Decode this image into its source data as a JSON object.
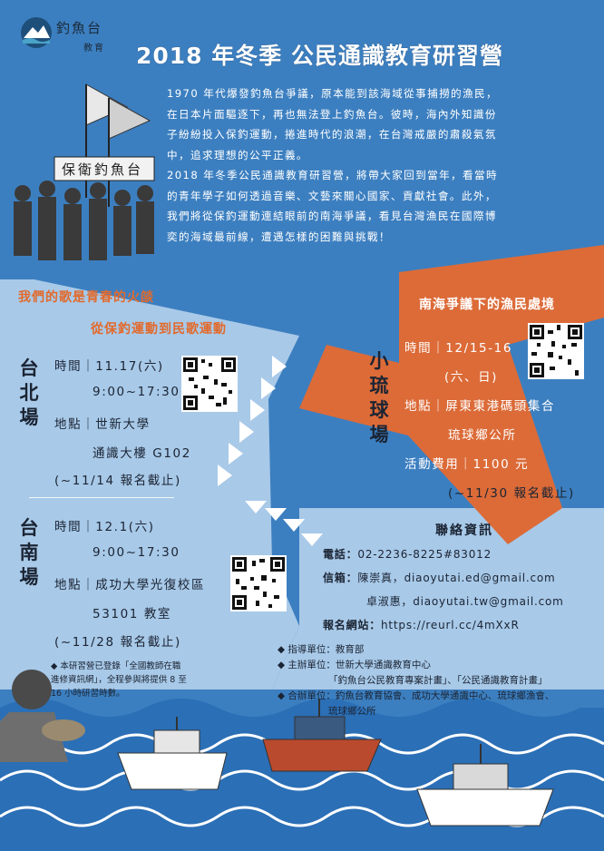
{
  "logo": {
    "name": "釣魚台",
    "sub": "教育"
  },
  "title": "2018 年冬季  公民通識教育研習營",
  "intro": {
    "p1_lines": [
      "1970 年代爆發釣魚台爭議，原本能到該海域從事捕撈的漁民，",
      "在日本片面驅逐下，再也無法登上釣魚台。彼時，海內外知識份",
      "子紛紛投入保釣運動，捲進時代的浪潮，在台灣戒嚴的肅殺氣氛",
      "中，追求理想的公平正義。"
    ],
    "p2_lines": [
      "2018 年冬季公民通識教育研習營，將帶大家回到當年，看當時",
      "的青年學子如何透過音樂、文藝來關心國家、貢獻社會。此外，",
      "我們將從保釣運動連結眼前的南海爭議，看見台灣漁民在國際博",
      "奕的海域最前線，遭遇怎樣的困難與挑戰！"
    ]
  },
  "photo": {
    "banner_text": "保衛釣魚台"
  },
  "left_theme": {
    "line1": "我們的歌是青春的火燄",
    "line2": "從保釣運動到民歌運動"
  },
  "taipei": {
    "venue": [
      "台",
      "北",
      "場"
    ],
    "time_label": "時間｜11.17(六)",
    "time_hours": "9:00~17:30",
    "place_label": "地點｜世新大學",
    "place_detail": "通識大樓 G102",
    "deadline": "(~11/14 報名截止)"
  },
  "tainan": {
    "venue": [
      "台",
      "南",
      "場"
    ],
    "time_label": "時間｜12.1(六)",
    "time_hours": "9:00~17:30",
    "place_label": "地點｜成功大學光復校區",
    "place_detail": "53101 教室",
    "deadline": "(~11/28 報名截止)"
  },
  "right_theme": "南海爭議下的漁民處境",
  "liuqiu": {
    "venue": [
      "小",
      "琉",
      "球",
      "場"
    ],
    "time_label": "時間｜12/15-16",
    "time_days": "(六、日)",
    "place_label": "地點｜屏東東港碼頭集合",
    "place_detail": "琉球鄉公所",
    "fee": "活動費用｜1100 元",
    "deadline": "(~11/30 報名截止)"
  },
  "contact": {
    "title": "聯絡資訊",
    "phone_label": "電話：",
    "phone": "02-2236-8225#83012",
    "mail_label": "信箱：",
    "mail1_name": "陳崇真，",
    "mail1": "diaoyutai.ed@gmail.com",
    "mail2_name": "卓淑惠，",
    "mail2": "diaoyutai.tw@gmail.com",
    "web_label": "報名網站：",
    "web": "https://reurl.cc/4mXxR"
  },
  "units": {
    "guide": "指導單位：教育部",
    "host": "主辦單位：世新大學通識教育中心",
    "host_detail": "「釣魚台公民教育專案計畫」、「公民通識教育計畫」",
    "co": "合辦單位：釣魚台教育協會、成功大學通識中心、琉球鄉漁會、",
    "co_detail": "琉球鄉公所"
  },
  "note": "本研習營已登錄「全國教師在職進修資訊網」，全程參與將提供 8 至 16 小時研習時數。",
  "colors": {
    "background": "#3c7fc0",
    "light_panel": "#a8c9e8",
    "orange": "#dc6b38",
    "dark_text": "#1b2433",
    "theme_text": "#e26a2c"
  }
}
